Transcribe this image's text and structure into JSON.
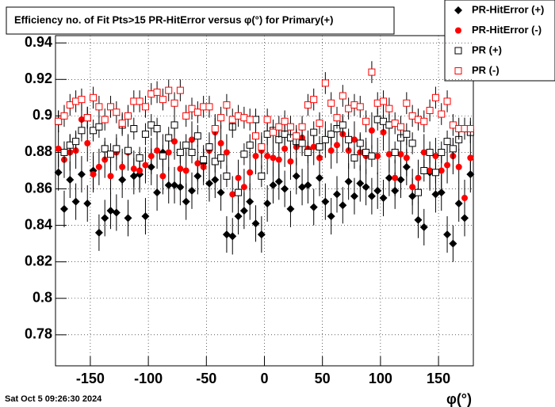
{
  "chart_data": {
    "type": "scatter",
    "title": "Efficiency no. of Fit Pts>15 PR-HitError versus φ(°) for Primary(+)",
    "x_label": "φ(°)",
    "footer": "Sat Oct  5 09:26:30 2024",
    "xlim": [
      -180,
      180
    ],
    "ylim": [
      0.763,
      0.944
    ],
    "xticks": [
      -150,
      -100,
      -50,
      0,
      50,
      100,
      150
    ],
    "yticks": [
      0.78,
      0.8,
      0.82,
      0.84,
      0.86,
      0.88,
      0.9,
      0.92,
      0.94
    ],
    "grid": true,
    "legend": "top-right",
    "x": [
      -177.5,
      -172.5,
      -167.5,
      -162.5,
      -157.5,
      -152.5,
      -147.5,
      -142.5,
      -137.5,
      -132.5,
      -127.5,
      -122.5,
      -117.5,
      -112.5,
      -107.5,
      -102.5,
      -97.5,
      -92.5,
      -87.5,
      -82.5,
      -77.5,
      -72.5,
      -67.5,
      -62.5,
      -57.5,
      -52.5,
      -47.5,
      -42.5,
      -37.5,
      -32.5,
      -27.5,
      -22.5,
      -17.5,
      -12.5,
      -7.5,
      -2.5,
      2.5,
      7.5,
      12.5,
      17.5,
      22.5,
      27.5,
      32.5,
      37.5,
      42.5,
      47.5,
      52.5,
      57.5,
      62.5,
      67.5,
      72.5,
      77.5,
      82.5,
      87.5,
      92.5,
      97.5,
      102.5,
      107.5,
      112.5,
      117.5,
      122.5,
      127.5,
      132.5,
      137.5,
      142.5,
      147.5,
      152.5,
      157.5,
      162.5,
      167.5,
      172.5,
      177.5
    ],
    "series": [
      {
        "name": "PR-HitError (+)",
        "color": "#000000",
        "marker": "diamond",
        "error": 0.01,
        "values": [
          0.869,
          0.849,
          0.865,
          0.853,
          0.868,
          0.852,
          0.87,
          0.836,
          0.844,
          0.848,
          0.847,
          0.865,
          0.844,
          0.867,
          0.868,
          0.845,
          0.872,
          0.858,
          0.88,
          0.862,
          0.862,
          0.861,
          0.853,
          0.859,
          0.867,
          0.874,
          0.863,
          0.865,
          0.858,
          0.835,
          0.834,
          0.845,
          0.848,
          0.853,
          0.841,
          0.835,
          0.852,
          0.862,
          0.864,
          0.86,
          0.849,
          0.867,
          0.861,
          0.862,
          0.85,
          0.866,
          0.853,
          0.845,
          0.857,
          0.851,
          0.864,
          0.856,
          0.863,
          0.861,
          0.856,
          0.859,
          0.855,
          0.866,
          0.859,
          0.865,
          0.872,
          0.856,
          0.843,
          0.839,
          0.869,
          0.857,
          0.858,
          0.835,
          0.83,
          0.852,
          0.844,
          0.868
        ]
      },
      {
        "name": "PR-HitError (-)",
        "color": "#ff0000",
        "marker": "circle",
        "error": 0.01,
        "values": [
          0.882,
          0.876,
          0.88,
          0.881,
          0.898,
          0.885,
          0.868,
          0.872,
          0.876,
          0.867,
          0.88,
          0.872,
          0.88,
          0.871,
          0.87,
          0.873,
          0.878,
          0.881,
          0.867,
          0.88,
          0.886,
          0.871,
          0.87,
          0.887,
          0.874,
          0.872,
          0.881,
          0.891,
          0.885,
          0.88,
          0.857,
          0.866,
          0.861,
          0.869,
          0.878,
          0.881,
          0.878,
          0.877,
          0.876,
          0.882,
          0.875,
          0.883,
          0.888,
          0.882,
          0.883,
          0.877,
          0.887,
          0.881,
          0.884,
          0.89,
          0.881,
          0.887,
          0.88,
          0.878,
          0.892,
          0.878,
          0.891,
          0.879,
          0.866,
          0.879,
          0.877,
          0.861,
          0.866,
          0.88,
          0.87,
          0.878,
          0.87,
          0.873,
          0.878,
          0.872,
          0.855,
          0.877
        ]
      },
      {
        "name": "PR (+)",
        "color": "#000000",
        "marker": "open-square",
        "error": 0.006,
        "values": [
          0.897,
          0.88,
          0.884,
          0.886,
          0.892,
          0.899,
          0.892,
          0.894,
          0.882,
          0.879,
          0.882,
          0.895,
          0.881,
          0.893,
          0.877,
          0.89,
          0.895,
          0.893,
          0.878,
          0.888,
          0.895,
          0.88,
          0.884,
          0.88,
          0.889,
          0.876,
          0.883,
          0.875,
          0.877,
          0.867,
          0.894,
          0.858,
          0.879,
          0.884,
          0.898,
          0.867,
          0.89,
          0.892,
          0.887,
          0.89,
          0.888,
          0.886,
          0.885,
          0.88,
          0.891,
          0.883,
          0.887,
          0.89,
          0.893,
          0.895,
          0.887,
          0.877,
          0.885,
          0.88,
          0.878,
          0.898,
          0.897,
          0.895,
          0.88,
          0.888,
          0.89,
          0.885,
          0.858,
          0.87,
          0.88,
          0.869,
          0.88,
          0.886,
          0.882,
          0.887,
          0.893,
          0.891
        ]
      },
      {
        "name": "PR (-)",
        "color": "#ff0000",
        "marker": "open-square",
        "error": 0.006,
        "values": [
          0.897,
          0.9,
          0.906,
          0.908,
          0.909,
          0.899,
          0.91,
          0.905,
          0.898,
          0.905,
          0.902,
          0.896,
          0.9,
          0.908,
          0.908,
          0.905,
          0.912,
          0.913,
          0.909,
          0.914,
          0.907,
          0.914,
          0.9,
          0.904,
          0.902,
          0.905,
          0.905,
          0.893,
          0.899,
          0.906,
          0.898,
          0.9,
          0.899,
          0.898,
          0.889,
          0.883,
          0.898,
          0.891,
          0.894,
          0.897,
          0.894,
          0.889,
          0.894,
          0.906,
          0.909,
          0.896,
          0.918,
          0.907,
          0.899,
          0.911,
          0.904,
          0.906,
          0.905,
          0.897,
          0.924,
          0.907,
          0.908,
          0.904,
          0.896,
          0.894,
          0.907,
          0.9,
          0.898,
          0.897,
          0.903,
          0.91,
          0.901,
          0.908,
          0.895,
          0.893,
          0.893,
          0.893
        ]
      }
    ]
  }
}
